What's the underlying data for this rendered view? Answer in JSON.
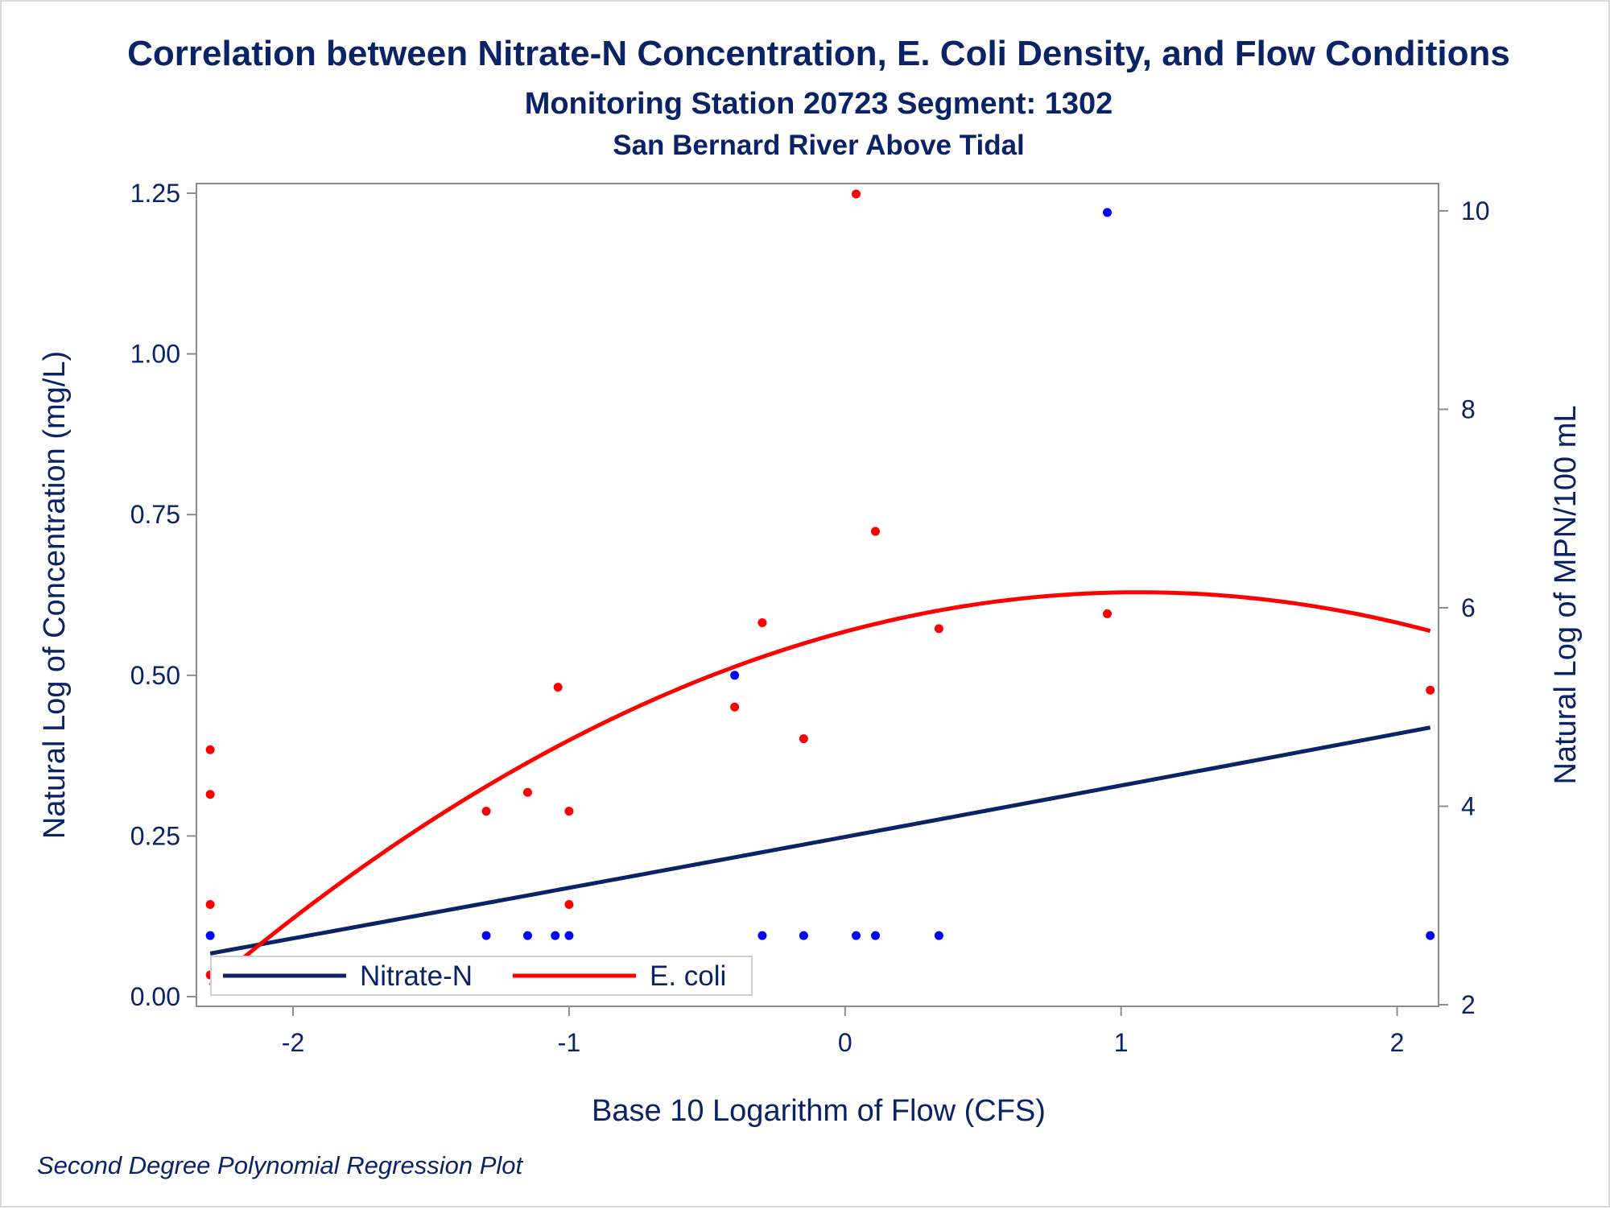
{
  "colors": {
    "text": "#0a2366",
    "axis": "#8c8c8c",
    "nitrate_line": "#0a2366",
    "ecoli_line": "#ff0000",
    "nitrate_points": "#0000ff",
    "ecoli_points": "#ff0000"
  },
  "chart_data": {
    "type": "scatter",
    "title": "Correlation between Nitrate-N Concentration, E. Coli Density, and Flow Conditions",
    "subtitle": "Monitoring Station 20723 Segment: 1302",
    "subtitle2": "San Bernard River Above Tidal",
    "xlabel": "Base 10 Logarithm of Flow (CFS)",
    "ylabel": "Natural Log of Concentration (mg/L)",
    "y2label": "Natural Log of MPN/100 mL",
    "footnote": "Second Degree Polynomial Regression Plot",
    "xlim": [
      -2.35,
      2.15
    ],
    "ylim": [
      -0.015,
      1.265
    ],
    "y2lim": [
      1.984,
      10.275
    ],
    "xticks": [
      -2,
      -1,
      0,
      1,
      2
    ],
    "xtick_labels": [
      "-2",
      "-1",
      "0",
      "1",
      "2"
    ],
    "yticks": [
      0.0,
      0.25,
      0.5,
      0.75,
      1.0,
      1.25
    ],
    "ytick_labels": [
      "0.00",
      "0.25",
      "0.50",
      "0.75",
      "1.00",
      "1.25"
    ],
    "y2ticks": [
      2,
      4,
      6,
      8,
      10
    ],
    "y2tick_labels": [
      "2",
      "4",
      "6",
      "8",
      "10"
    ],
    "grid": false,
    "legend_position": "bottom-left inside plot",
    "series": [
      {
        "name": "Nitrate-N",
        "axis": "left",
        "marker_color": "#0000ff",
        "line_color": "#0a2366",
        "points": [
          {
            "x": -2.3,
            "y": 0.095
          },
          {
            "x": -1.3,
            "y": 0.095
          },
          {
            "x": -1.15,
            "y": 0.095
          },
          {
            "x": -1.05,
            "y": 0.095
          },
          {
            "x": -1.0,
            "y": 0.095
          },
          {
            "x": -0.4,
            "y": 0.5
          },
          {
            "x": -0.3,
            "y": 0.095
          },
          {
            "x": -0.15,
            "y": 0.095
          },
          {
            "x": 0.04,
            "y": 0.095
          },
          {
            "x": 0.11,
            "y": 0.095
          },
          {
            "x": 0.34,
            "y": 0.095
          },
          {
            "x": 0.95,
            "y": 1.22
          },
          {
            "x": 2.12,
            "y": 0.095
          }
        ],
        "fit": {
          "x_start": -2.3,
          "x_end": 2.12,
          "a": 0.00032,
          "b": 0.0796,
          "c": 0.2486
        }
      },
      {
        "name": "E. coli",
        "axis": "right",
        "marker_color": "#ff0000",
        "line_color": "#ff0000",
        "points": [
          {
            "x": -2.3,
            "y": 4.57
          },
          {
            "x": -2.3,
            "y": 4.12
          },
          {
            "x": -2.3,
            "y": 3.01
          },
          {
            "x": -2.3,
            "y": 2.3
          },
          {
            "x": -1.3,
            "y": 3.95
          },
          {
            "x": -1.15,
            "y": 4.14
          },
          {
            "x": -1.04,
            "y": 5.2
          },
          {
            "x": -1.0,
            "y": 3.95
          },
          {
            "x": -1.0,
            "y": 3.01
          },
          {
            "x": -0.4,
            "y": 5.0
          },
          {
            "x": -0.3,
            "y": 5.85
          },
          {
            "x": -0.15,
            "y": 4.68
          },
          {
            "x": 0.04,
            "y": 10.17
          },
          {
            "x": 0.11,
            "y": 6.77
          },
          {
            "x": 0.34,
            "y": 5.79
          },
          {
            "x": 0.95,
            "y": 5.94
          },
          {
            "x": 2.12,
            "y": 5.17
          }
        ],
        "fit": {
          "x_start": -2.3,
          "x_end": 2.12,
          "a": -0.35,
          "b": 0.745,
          "c": 5.76
        }
      }
    ]
  }
}
